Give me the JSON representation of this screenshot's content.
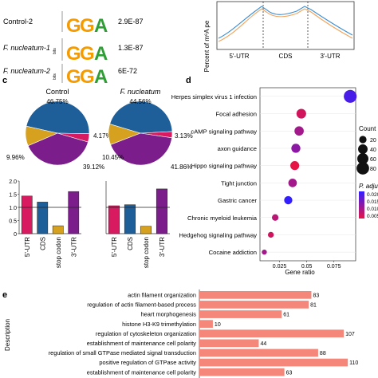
{
  "panel_labels": {
    "c": "c",
    "d": "d",
    "e": "e"
  },
  "motifs": {
    "rows": [
      {
        "name": "Control-2",
        "pvalue": "2.9E-87"
      },
      {
        "name": "F. nucleatum-1",
        "pvalue": "1.3E-87"
      },
      {
        "name": "F. nucleatum-2",
        "pvalue": "6E-72"
      }
    ],
    "bits_label": "bits",
    "letters": "GGA"
  },
  "metagene": {
    "ylabel": "Percent of m⁶A pe",
    "regions": [
      "5'-UTR",
      "CDS",
      "3'-UTR"
    ]
  },
  "colors": {
    "utr5": "#d81b60",
    "cds": "#1f5f99",
    "stop": "#d6a11f",
    "utr3": "#7b1e8c",
    "bar_e": "#f4877a",
    "metagene_a": "#3d8fd1",
    "metagene_b": "#f1a35c"
  },
  "chart_data": [
    {
      "type": "pie",
      "title": "Control",
      "categories": [
        "CDS",
        "5'-UTR",
        "3'-UTR",
        "stop codon"
      ],
      "values": [
        46.75,
        4.17,
        39.12,
        9.96
      ],
      "labels": [
        "46.75%",
        "4.17%",
        "39.12%",
        "9.96%"
      ]
    },
    {
      "type": "pie",
      "title": "F. nucleatum",
      "categories": [
        "CDS",
        "5'-UTR",
        "3'-UTR",
        "stop codon"
      ],
      "values": [
        44.56,
        3.13,
        41.86,
        10.45
      ],
      "labels": [
        "44.56%",
        "3.13%",
        "41.86%",
        "10.45%"
      ]
    },
    {
      "type": "bar",
      "categories": [
        "5'-UTR",
        "CDS",
        "stop codon",
        "3'-UTR"
      ],
      "values": [
        1.43,
        1.2,
        0.3,
        1.6
      ],
      "ylim": [
        0,
        2.0
      ],
      "yticks": [
        "0",
        "0.5",
        "1.0",
        "1.5",
        "2.0"
      ],
      "reference_line": 1.0
    },
    {
      "type": "bar",
      "categories": [
        "5'-UTR",
        "CDS",
        "stop codon",
        "3'-UTR"
      ],
      "values": [
        1.06,
        1.1,
        0.28,
        1.7
      ],
      "ylim": [
        0,
        2.0
      ],
      "reference_line": 1.0
    },
    {
      "type": "scatter",
      "xlabel": "Gene ratio",
      "categories": [
        "Herpes simplex virus 1 infection",
        "Focal adhesion",
        "cAMP signaling pathway",
        "axon guidance",
        "Hippo signaling pathway",
        "Tight junction",
        "Gastric cancer",
        "Chronic myeloid leukemia",
        "Hedgehog signaling pathway",
        "Cocaine addiction"
      ],
      "x": [
        0.09,
        0.045,
        0.043,
        0.04,
        0.039,
        0.037,
        0.033,
        0.021,
        0.017,
        0.011
      ],
      "count": [
        85,
        42,
        38,
        35,
        34,
        30,
        27,
        14,
        10,
        6
      ],
      "padjust": [
        0.018,
        0.006,
        0.01,
        0.012,
        0.004,
        0.01,
        0.02,
        0.008,
        0.006,
        0.01
      ],
      "xticks": [
        0.025,
        0.05,
        0.075
      ],
      "xlim": [
        0.007,
        0.095
      ],
      "legend": {
        "count_title": "Count",
        "count_values": [
          20,
          40,
          60,
          80
        ],
        "color_title": "P. adjust",
        "color_ticks": [
          "0.020",
          "0.015",
          "0.010",
          "0.005"
        ]
      }
    },
    {
      "type": "bar",
      "orientation": "horizontal",
      "ylabel": "Description",
      "categories": [
        "actin filament organization",
        "regulation of actin filament-based process",
        "heart morphogenesis",
        "histone H3-K9 trimethylation",
        "regulation of cytoskeleton organization",
        "establishment of maintenance cell polarity",
        "regulation of small GTPase mediated signal transduction",
        "positive regulation of GTPase activity",
        "establishment of maintenance cell polarity"
      ],
      "values": [
        83,
        81,
        61,
        10,
        107,
        44,
        88,
        110,
        63
      ],
      "xlim": [
        0,
        130
      ]
    }
  ]
}
